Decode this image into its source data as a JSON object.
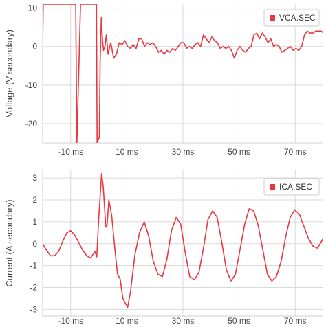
{
  "colors": {
    "series": "#e8373f",
    "grid": "#d9d9d9",
    "axis": "#cfcfcf",
    "legend_border": "#cccccc",
    "text": "#444444"
  },
  "chart_data": [
    {
      "type": "line",
      "ylabel": "Voltage (V secondary)",
      "xlabel": "",
      "xlim": [
        -20,
        80
      ],
      "ylim": [
        -25,
        11
      ],
      "x_ticks": [
        -10,
        10,
        30,
        50,
        70
      ],
      "x_tick_labels": [
        "-10 ms",
        "10 ms",
        "30 ms",
        "50 ms",
        "70 ms"
      ],
      "y_ticks": [
        10,
        0,
        -10,
        -20
      ],
      "y_tick_labels": [
        "10",
        "0",
        "-10",
        "-20"
      ],
      "grid": true,
      "legend": "top-right",
      "series": [
        {
          "name": "VCA.SEC",
          "x": [
            -20,
            -19.8,
            -8.2,
            -7.8,
            -6.5,
            -0.8,
            -0.6,
            0.2,
            0.5,
            0.9,
            1.3,
            1.7,
            2.2,
            2.7,
            3.3,
            4.3,
            5.3,
            6.3,
            7.3,
            8.3,
            9.3,
            10.3,
            11.3,
            12.3,
            13.3,
            14.3,
            15.3,
            16.3,
            17.3,
            18.3,
            19.3,
            20.3,
            21.3,
            22.3,
            23.3,
            24.3,
            25.3,
            26.3,
            27.3,
            28.3,
            29.3,
            30.3,
            31.3,
            32.3,
            33.3,
            34.3,
            35.3,
            36.3,
            37.3,
            38.3,
            39.3,
            40.3,
            41.3,
            42.3,
            43.3,
            44.3,
            45.3,
            46.3,
            47.3,
            48.3,
            49.3,
            50.3,
            51.3,
            52.3,
            53.3,
            54.3,
            55.3,
            56.3,
            57.3,
            58.3,
            59.3,
            60.3,
            61.3,
            62.3,
            63.3,
            64.3,
            65.3,
            66.3,
            67.3,
            68.3,
            69.3,
            70.3,
            71.3,
            72.3,
            73.3,
            74.3,
            75.3,
            76.3,
            77.3,
            78.3,
            79.3,
            80
          ],
          "y": [
            0,
            11,
            11,
            -25,
            11,
            11,
            -25,
            -23.5,
            -4,
            7.5,
            2,
            -1,
            0,
            3,
            -2,
            1,
            -3,
            -2,
            1,
            0.5,
            1.5,
            0,
            -0.5,
            0.5,
            -0.5,
            2,
            2,
            0,
            1,
            0.5,
            1,
            0,
            -1.5,
            -1,
            -2,
            -1,
            -1.5,
            -0.5,
            -1,
            0,
            1,
            1,
            -0.5,
            0,
            -0.5,
            0.5,
            1,
            0,
            3,
            2,
            1,
            2.5,
            1.5,
            1,
            -0.5,
            0,
            -0.5,
            0,
            -1,
            -3,
            -1,
            0,
            -1,
            -1.5,
            -0.5,
            0,
            3,
            3.5,
            2,
            3.5,
            2.5,
            1,
            2,
            0,
            0.5,
            0,
            -1.5,
            -1,
            -0.5,
            0,
            -1,
            -0.5,
            -1,
            0,
            3,
            4,
            3.5,
            3.5,
            4,
            4,
            4,
            3.5
          ]
        }
      ]
    },
    {
      "type": "line",
      "ylabel": "Current (A secondary)",
      "xlabel": "",
      "xlim": [
        -20,
        80
      ],
      "ylim": [
        -3.3,
        3.35
      ],
      "x_ticks": [
        -10,
        10,
        30,
        50,
        70
      ],
      "x_tick_labels": [
        "-10 ms",
        "10 ms",
        "30 ms",
        "50 ms",
        "70 ms"
      ],
      "y_ticks": [
        3,
        2,
        1,
        0,
        -1,
        -2,
        -3
      ],
      "y_tick_labels": [
        "3",
        "2",
        "1",
        "0",
        "-1",
        "-2",
        "-3"
      ],
      "grid": true,
      "legend": "top-right",
      "series": [
        {
          "name": "ICA.SEC",
          "x": [
            -20,
            -18.6,
            -17.2,
            -15.7,
            -14.3,
            -12.9,
            -11.4,
            -10,
            -8.6,
            -7.1,
            -5.7,
            -4.3,
            -2.9,
            -1.4,
            -0.7,
            0,
            1,
            1.6,
            2.5,
            2.9,
            3.6,
            4.6,
            5.7,
            6.7,
            7.6,
            8.6,
            9.4,
            10.3,
            11.3,
            12.9,
            14.5,
            16.2,
            17.8,
            19.4,
            21.1,
            22.7,
            24.3,
            25.9,
            27.6,
            29.2,
            30.8,
            32.4,
            34.1,
            35.7,
            37.3,
            38.9,
            40.6,
            42.2,
            43.8,
            45.5,
            47.1,
            48.7,
            50.3,
            52,
            53.6,
            55.2,
            56.8,
            58.5,
            60.1,
            61.7,
            63.3,
            65,
            66.6,
            68.2,
            69.8,
            71.5,
            73.1,
            74.7,
            76.3,
            78,
            80
          ],
          "y": [
            0,
            -0.3,
            -0.55,
            -0.55,
            -0.35,
            0.1,
            0.5,
            0.6,
            0.4,
            0.05,
            -0.3,
            -0.55,
            -0.65,
            -0.35,
            -0.6,
            1.2,
            3.2,
            2.6,
            0.8,
            0.75,
            2,
            1.3,
            -0.2,
            -1.4,
            -1.6,
            -2.5,
            -2.7,
            -2.9,
            -2.2,
            -0.5,
            0.5,
            1,
            0.35,
            -0.8,
            -1.4,
            -1.5,
            -0.7,
            0.6,
            1.2,
            0.9,
            -0.4,
            -1.5,
            -1.65,
            -1.3,
            -0.2,
            1.1,
            1.5,
            1.2,
            0.1,
            -1.2,
            -1.7,
            -1.4,
            -0.3,
            0.9,
            1.6,
            1.5,
            0.85,
            -0.3,
            -1.4,
            -1.7,
            -1.5,
            -0.8,
            0.3,
            1.2,
            1.55,
            1.35,
            0.8,
            0.25,
            -0.1,
            -0.2,
            0.25
          ]
        }
      ]
    }
  ]
}
